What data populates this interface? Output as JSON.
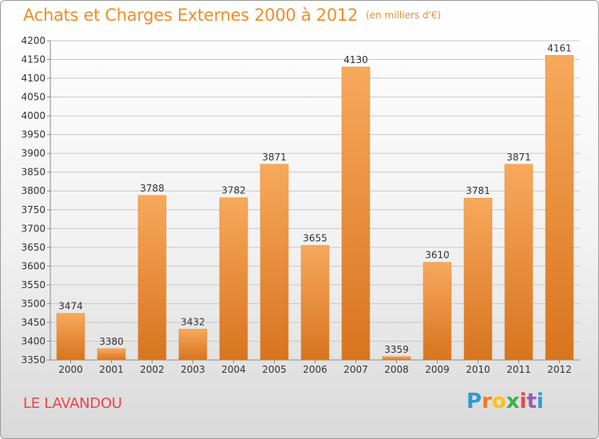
{
  "header": {
    "title": "Achats et Charges Externes 2000 à 2012",
    "unit": "(en milliers d'€)"
  },
  "place_name": "LE LAVANDOU",
  "logo": {
    "text": "Proxiti"
  },
  "colors": {
    "accent": "#f28c28",
    "bar_top": "#f7a95c",
    "bar_bottom": "#d8741e",
    "place": "#e8464e",
    "grid": "#c8c8c8"
  },
  "chart_data": {
    "type": "bar",
    "title": "Achats et Charges Externes 2000 à 2012",
    "categories": [
      "2000",
      "2001",
      "2002",
      "2003",
      "2004",
      "2005",
      "2006",
      "2007",
      "2008",
      "2009",
      "2010",
      "2011",
      "2012"
    ],
    "values": [
      3474,
      3380,
      3788,
      3432,
      3782,
      3871,
      3655,
      4130,
      3359,
      3610,
      3781,
      3871,
      4161
    ],
    "ylim": [
      3350,
      4200
    ],
    "yticks": [
      3350,
      3400,
      3450,
      3500,
      3550,
      3600,
      3650,
      3700,
      3750,
      3800,
      3850,
      3900,
      3950,
      4000,
      4050,
      4100,
      4150,
      4200
    ],
    "grid": true,
    "data_labels": true
  }
}
